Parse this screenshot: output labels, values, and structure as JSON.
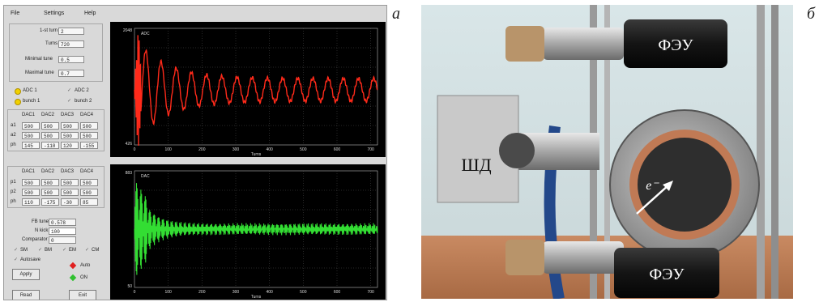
{
  "panel_labels": {
    "left": "а",
    "right": "б"
  },
  "menu": {
    "file": "File",
    "settings": "Settings",
    "help": "Help"
  },
  "settings_box": {
    "first_turn_label": "1-st turn",
    "first_turn_value": "2",
    "turns_label": "Turns",
    "turns_value": "720",
    "minimal_tune_label": "Minimal tune",
    "minimal_tune_value": "0.5",
    "maximal_tune_label": "Maximal tune",
    "maximal_tune_value": "0.7"
  },
  "channels": {
    "adc1": "ADC 1",
    "adc2": "ADC 2",
    "bunch1": "bunch 1",
    "bunch2": "bunch 2"
  },
  "dac_table_a": {
    "headers": [
      "DAC1",
      "DAC2",
      "DAC3",
      "DAC4"
    ],
    "rows": [
      {
        "label": "a1",
        "values": [
          "500",
          "500",
          "500",
          "500"
        ]
      },
      {
        "label": "a2",
        "values": [
          "500",
          "500",
          "500",
          "500"
        ]
      },
      {
        "label": "ph",
        "values": [
          "145",
          "-110",
          "120",
          "-155"
        ]
      }
    ]
  },
  "dac_table_p": {
    "headers": [
      "DAC1",
      "DAC2",
      "DAC3",
      "DAC4"
    ],
    "rows": [
      {
        "label": "p1",
        "values": [
          "500",
          "500",
          "500",
          "500"
        ]
      },
      {
        "label": "p2",
        "values": [
          "500",
          "500",
          "500",
          "500"
        ]
      },
      {
        "label": "ph",
        "values": [
          "110",
          "-175",
          "-30",
          "85"
        ]
      }
    ]
  },
  "fb": {
    "fb_tune_label": "FB tune",
    "fb_tune_value": "0.578",
    "n_kick_label": "N kick",
    "n_kick_value": "100",
    "comparator_label": "Comparator",
    "comparator_value": "0"
  },
  "modes": {
    "sm": "SM",
    "bm": "BM",
    "em": "EM",
    "cm": "CM",
    "autosave": "Autosave"
  },
  "buttons": {
    "apply": "Apply",
    "read": "Read",
    "exit": "Exit"
  },
  "indicators": {
    "auto": "Auto",
    "on": "ON"
  },
  "colors": {
    "trace_top": "#ff2a1a",
    "trace_bottom": "#33dd33",
    "auto_led": "#e02020",
    "on_led": "#30c030",
    "radio_active": "#f0d000"
  },
  "plot_top": {
    "legend": "ADC",
    "y_ticks": [
      "2048",
      "426"
    ],
    "x_ticks": [
      "0",
      "100",
      "200",
      "300",
      "400",
      "500",
      "600",
      "700"
    ],
    "xlabel": "Turns"
  },
  "plot_bottom": {
    "legend": "DAC",
    "y_ticks": [
      "883",
      "50"
    ],
    "x_ticks": [
      "0",
      "100",
      "200",
      "300",
      "400",
      "500",
      "600",
      "700"
    ],
    "xlabel": "Turns"
  },
  "photo_labels": {
    "pmt_top": "ФЭУ",
    "pmt_bottom": "ФЭУ",
    "stepper": "ШД",
    "electron": "e⁻"
  }
}
